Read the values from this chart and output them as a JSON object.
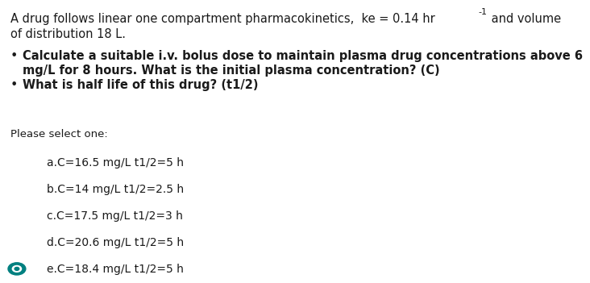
{
  "background_color": "#ffffff",
  "text_color": "#1a1a1a",
  "header_part1": "A drug follows linear one compartment pharmacokinetics,  ke = 0.14 hr",
  "header_super": "-1",
  "header_part2": " and volume",
  "header_line2": "of distribution 18 L.",
  "bullet1_line1": "Calculate a suitable i.v. bolus dose to maintain plasma drug concentrations above 6",
  "bullet1_line2": "mg/L for 8 hours. What is the initial plasma concentration? (C)",
  "bullet2": "What is half life of this drug? (t1/2)",
  "please_select": "Please select one:",
  "options": [
    {
      "label": "a.",
      "text": "C=16.5 mg/L t1/2=5 h",
      "selected": false
    },
    {
      "label": "b.",
      "text": "C=14 mg/L t1/2=2.5 h",
      "selected": false
    },
    {
      "label": "c.",
      "text": "C=17.5 mg/L t1/2=3 h",
      "selected": false
    },
    {
      "label": "d.",
      "text": "C=20.6 mg/L t1/2=5 h",
      "selected": false
    },
    {
      "label": "e.",
      "text": "C=18.4 mg/L t1/2=5 h",
      "selected": true
    }
  ],
  "selected_color": "#008080",
  "selected_dot_color": "#ffffff",
  "fs_header": 10.5,
  "fs_super": 8.0,
  "fs_bullet": 10.5,
  "fs_option": 10.0,
  "fs_please": 9.5
}
